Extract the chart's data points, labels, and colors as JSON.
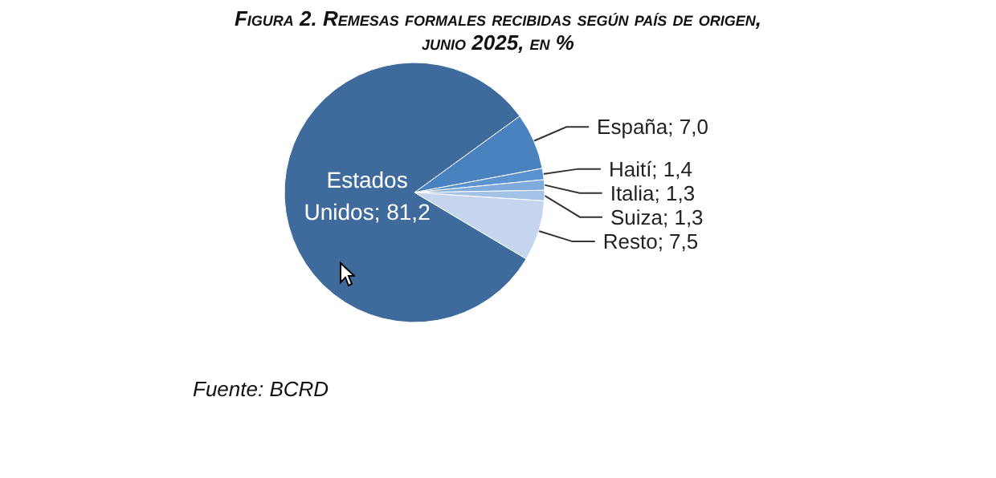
{
  "chart_data": {
    "type": "pie",
    "title": "Figura 2. Remesas formales recibidas según país de origen, junio 2025, en %",
    "categories": [
      "España",
      "Haití",
      "Italia",
      "Suiza",
      "Resto",
      "Estados Unidos"
    ],
    "values": [
      7.0,
      1.4,
      1.3,
      1.3,
      7.5,
      81.2
    ],
    "value_labels": [
      "7,0",
      "1,4",
      "1,3",
      "1,3",
      "7,5",
      "81,2"
    ],
    "colors": [
      "#4a82bf",
      "#5b93d0",
      "#7eaadc",
      "#a3c2e8",
      "#c5d5ed",
      "#3f6b9c"
    ],
    "legend": false,
    "annotations": [
      "Fuente: BCRD"
    ]
  }
}
